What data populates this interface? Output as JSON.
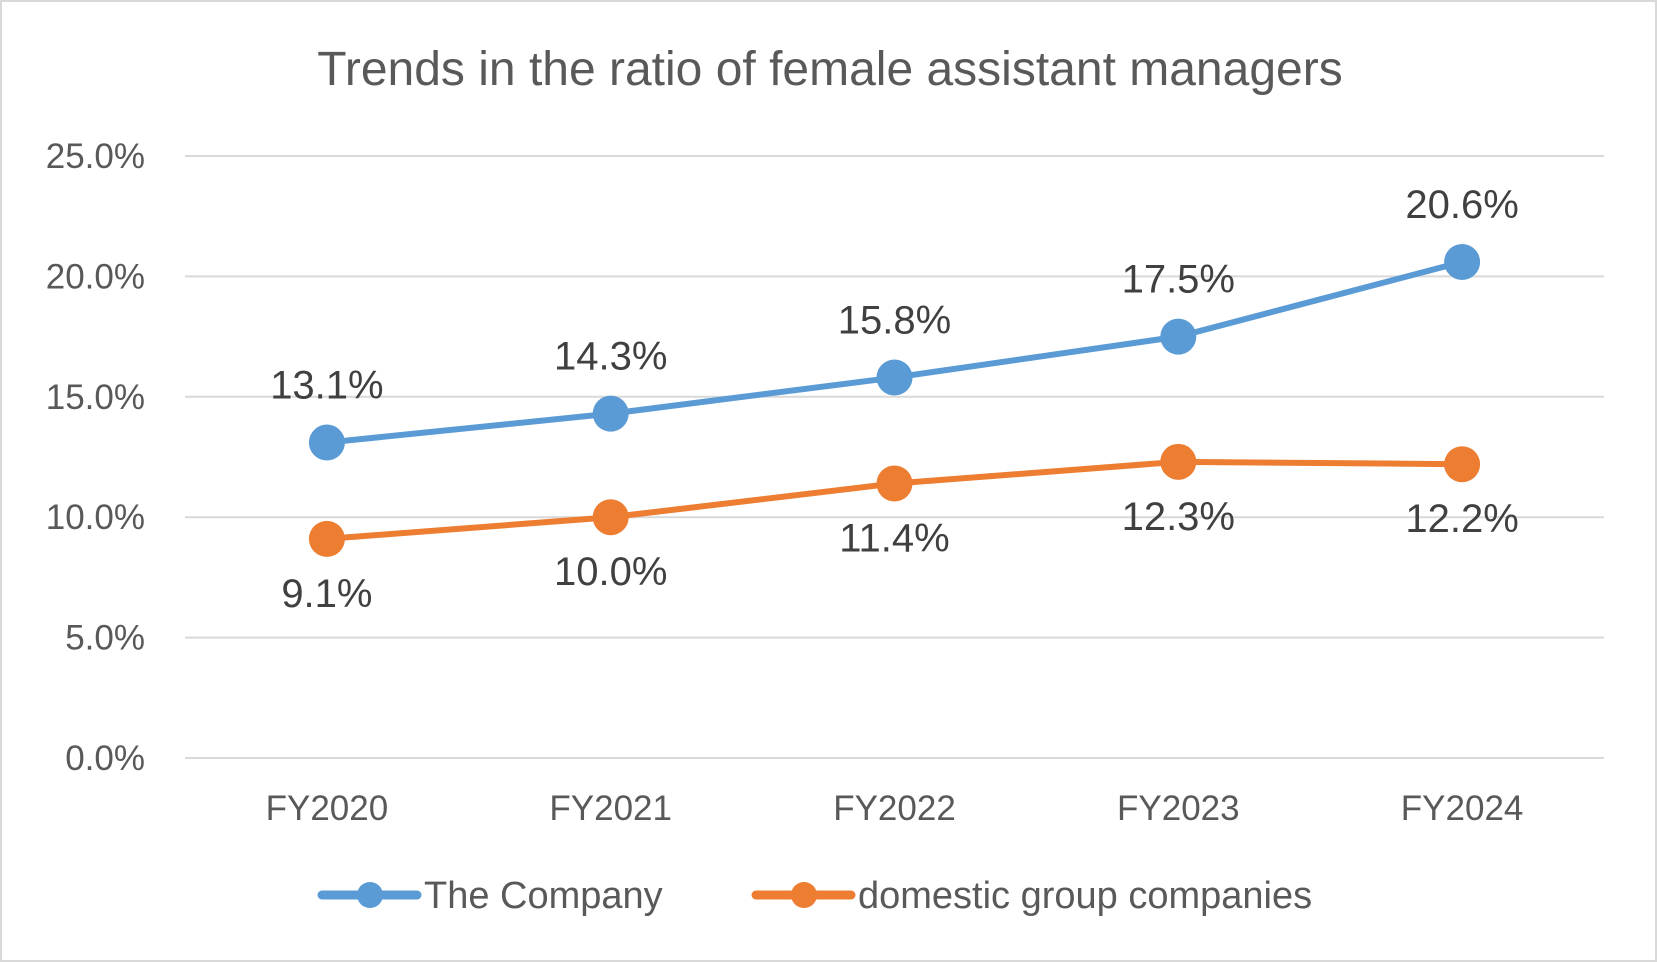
{
  "chart_data": {
    "type": "line",
    "title": "Trends in the ratio of female assistant managers",
    "categories": [
      "FY2020",
      "FY2021",
      "FY2022",
      "FY2023",
      "FY2024"
    ],
    "series": [
      {
        "name": "The Company",
        "values": [
          13.1,
          14.3,
          15.8,
          17.5,
          20.6
        ],
        "labels": [
          "13.1%",
          "14.3%",
          "15.8%",
          "17.5%",
          "20.6%"
        ],
        "color": "#5b9bd5",
        "label_position": "above"
      },
      {
        "name": "domestic group companies",
        "values": [
          9.1,
          10.0,
          11.4,
          12.3,
          12.2
        ],
        "labels": [
          "9.1%",
          "10.0%",
          "11.4%",
          "12.3%",
          "12.2%"
        ],
        "color": "#ed7d31",
        "label_position": "below"
      }
    ],
    "ylim": [
      0,
      25
    ],
    "yticks": [
      "0.0%",
      "5.0%",
      "10.0%",
      "15.0%",
      "20.0%",
      "25.0%"
    ],
    "grid": true,
    "legend": "bottom"
  }
}
